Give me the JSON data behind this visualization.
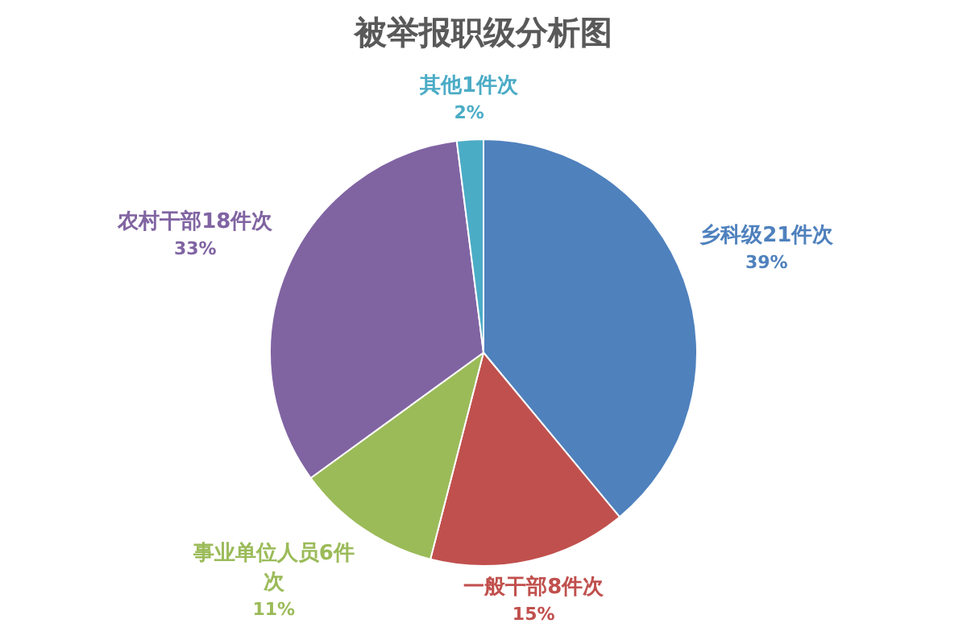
{
  "chart_data": {
    "type": "pie",
    "title": "被举报职级分析图",
    "categories": [
      "乡科级21件次",
      "一般干部8件次",
      "事业单位人员6件次",
      "农村干部18件次",
      "其他1件次"
    ],
    "values": [
      39,
      15,
      11,
      33,
      2
    ],
    "colors": [
      "#4f81bd",
      "#c0504d",
      "#9bbb59",
      "#8064a2",
      "#4bacc6"
    ],
    "value_labels": [
      "39%",
      "15%",
      "11%",
      "33%",
      "2%"
    ]
  }
}
